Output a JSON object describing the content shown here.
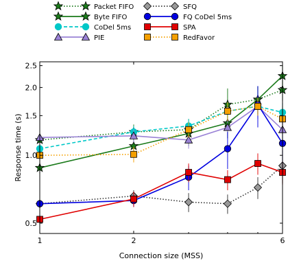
{
  "chart_data": {
    "type": "line",
    "xlabel": "Connection size (MSS)",
    "ylabel": "Response time (s)",
    "x_scale": "log",
    "y_scale": "log",
    "xlim": [
      1,
      6
    ],
    "ylim": [
      0.45,
      2.6
    ],
    "x_ticks": [
      1,
      2,
      6
    ],
    "y_ticks": [
      0.5,
      1.0,
      1.5,
      2.0,
      2.5
    ],
    "y_tick_labels": [
      "0.5",
      "1.0",
      "1.5",
      "2.0",
      "2.5"
    ],
    "x": [
      1,
      2,
      3,
      4,
      5,
      6
    ],
    "legend_position": "top (above plot, 2 columns)",
    "grid": false,
    "series": [
      {
        "name": "Packet FIFO",
        "color": "#1a7a1a",
        "marker": "star",
        "line": "dotted",
        "face": "#1a7a1a",
        "values": [
          1.17,
          1.27,
          1.3,
          1.68,
          1.77,
          1.95
        ],
        "err": [
          0.05,
          0.1,
          0.15,
          0.3,
          0.25,
          0.2
        ]
      },
      {
        "name": "Byte FIFO",
        "color": "#1a7a1a",
        "marker": "star",
        "line": "solid",
        "face": "#1a7a1a",
        "values": [
          0.88,
          1.1,
          1.25,
          1.39,
          1.77,
          2.25
        ],
        "err": [
          0.05,
          0.1,
          0.15,
          0.2,
          0.25,
          0.25
        ]
      },
      {
        "name": "CoDel 5ms",
        "color": "#00c8c8",
        "marker": "circle",
        "line": "dashed",
        "face": "#00c8c8",
        "values": [
          1.07,
          1.27,
          1.35,
          1.57,
          1.65,
          1.55
        ],
        "err": [
          0.05,
          0.08,
          0.1,
          0.15,
          0.15,
          0.15
        ]
      },
      {
        "name": "PIE",
        "color": "#9a82d6",
        "marker": "triangle",
        "line": "solid",
        "face": "#9a82d6",
        "values": [
          1.2,
          1.22,
          1.17,
          1.33,
          1.65,
          1.3
        ],
        "err": [
          0.05,
          0.08,
          0.1,
          0.12,
          0.2,
          0.2
        ]
      },
      {
        "name": "SFQ",
        "color": "#333333",
        "marker": "diamond",
        "line": "dotted",
        "face": "#999999",
        "values": [
          0.61,
          0.66,
          0.62,
          0.61,
          0.72,
          0.9
        ],
        "err": [
          0.02,
          0.04,
          0.06,
          0.06,
          0.08,
          0.15
        ]
      },
      {
        "name": "FQ CoDel 5ms",
        "color": "#0000e0",
        "marker": "circle",
        "line": "solid",
        "face": "#0000e0",
        "values": [
          0.61,
          0.63,
          0.8,
          1.07,
          1.68,
          1.13
        ],
        "err": [
          0.02,
          0.04,
          0.1,
          0.2,
          0.35,
          0.3
        ]
      },
      {
        "name": "SPA",
        "color": "#e00000",
        "marker": "square",
        "line": "solid",
        "face": "#e00000",
        "values": [
          0.52,
          0.64,
          0.84,
          0.78,
          0.92,
          0.84
        ],
        "err": [
          0.02,
          0.05,
          0.08,
          0.08,
          0.1,
          0.1
        ]
      },
      {
        "name": "RedFavor",
        "color": "#f5a000",
        "marker": "square",
        "line": "dotted",
        "face": "#f5a000",
        "values": [
          1.0,
          1.01,
          1.3,
          1.57,
          1.65,
          1.45
        ],
        "err": [
          0.05,
          0.08,
          0.1,
          0.15,
          0.15,
          0.2
        ]
      }
    ]
  }
}
